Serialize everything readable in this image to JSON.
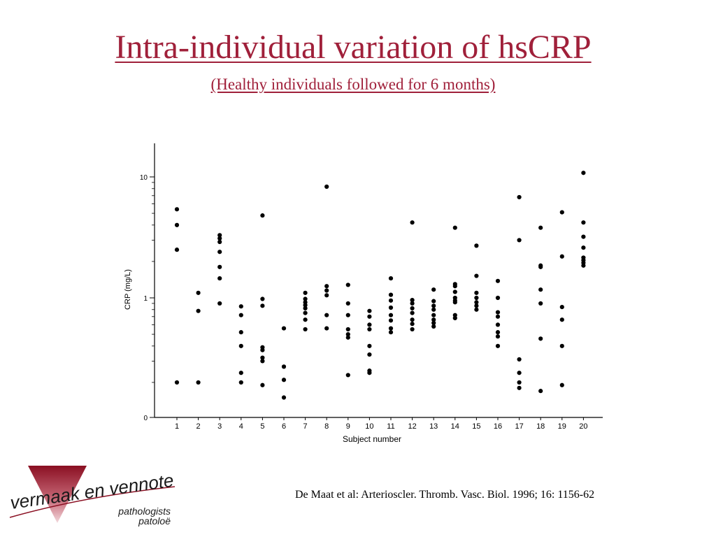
{
  "slide": {
    "title": "Intra-individual variation of hsCRP",
    "subtitle": "(Healthy individuals followed for 6 months)",
    "citation": "De Maat et al: Arterioscler. Thromb. Vasc. Biol. 1996; 16: 1156-62"
  },
  "logo": {
    "name": "vermaak en vennote",
    "line1": "pathologists",
    "line2": "patoloë"
  },
  "colors": {
    "title": "#a0203a",
    "points": "#000000",
    "logo_triangle": "#a8152d",
    "logo_text": "#1a1a1a"
  },
  "chart_data": {
    "type": "scatter",
    "title": "",
    "xlabel": "Subject number",
    "ylabel": "CRP (mg/L)",
    "y_scale": "log",
    "y_ticks": [
      "0",
      "1",
      "10"
    ],
    "grid": false,
    "categories": [
      "1",
      "2",
      "3",
      "4",
      "5",
      "6",
      "7",
      "8",
      "9",
      "10",
      "11",
      "12",
      "13",
      "14",
      "15",
      "16",
      "17",
      "18",
      "19",
      "20"
    ],
    "series": [
      {
        "x": "1",
        "values": [
          5.4,
          4.0,
          2.5,
          0.2
        ]
      },
      {
        "x": "2",
        "values": [
          1.1,
          0.78,
          0.2
        ]
      },
      {
        "x": "3",
        "values": [
          3.3,
          3.1,
          2.9,
          2.4,
          1.8,
          1.45,
          0.9
        ]
      },
      {
        "x": "4",
        "values": [
          0.85,
          0.72,
          0.52,
          0.4,
          0.24,
          0.2
        ]
      },
      {
        "x": "5",
        "values": [
          4.8,
          0.98,
          0.86,
          0.39,
          0.37,
          0.32,
          0.3,
          0.19
        ]
      },
      {
        "x": "6",
        "values": [
          0.56,
          0.27,
          0.21,
          0.15
        ]
      },
      {
        "x": "7",
        "values": [
          1.1,
          0.98,
          0.92,
          0.87,
          0.82,
          0.75,
          0.66,
          0.55
        ]
      },
      {
        "x": "8",
        "values": [
          8.3,
          1.25,
          1.15,
          1.05,
          0.72,
          0.56
        ]
      },
      {
        "x": "9",
        "values": [
          1.28,
          0.9,
          0.72,
          0.55,
          0.5,
          0.47,
          0.23
        ]
      },
      {
        "x": "10",
        "values": [
          0.78,
          0.7,
          0.6,
          0.55,
          0.4,
          0.34,
          0.25,
          0.24
        ]
      },
      {
        "x": "11",
        "values": [
          1.45,
          1.06,
          0.95,
          0.83,
          0.72,
          0.65,
          0.56,
          0.52
        ]
      },
      {
        "x": "12",
        "values": [
          4.2,
          0.96,
          0.9,
          0.82,
          0.75,
          0.66,
          0.61,
          0.55
        ]
      },
      {
        "x": "13",
        "values": [
          1.17,
          0.94,
          0.86,
          0.8,
          0.72,
          0.66,
          0.62,
          0.58
        ]
      },
      {
        "x": "14",
        "values": [
          3.8,
          1.3,
          1.25,
          1.12,
          1.0,
          0.95,
          0.92,
          0.72,
          0.68
        ]
      },
      {
        "x": "15",
        "values": [
          2.7,
          1.52,
          1.1,
          1.0,
          0.92,
          0.86,
          0.8
        ]
      },
      {
        "x": "16",
        "values": [
          1.38,
          1.0,
          0.76,
          0.7,
          0.6,
          0.52,
          0.48,
          0.4
        ]
      },
      {
        "x": "17",
        "values": [
          6.8,
          3.0,
          0.31,
          0.24,
          0.2,
          0.18
        ]
      },
      {
        "x": "18",
        "values": [
          3.8,
          1.85,
          1.8,
          1.17,
          0.9,
          0.46,
          0.17
        ]
      },
      {
        "x": "19",
        "values": [
          5.1,
          2.2,
          0.84,
          0.66,
          0.4,
          0.19
        ]
      },
      {
        "x": "20",
        "values": [
          10.8,
          4.2,
          3.2,
          2.6,
          2.15,
          2.05,
          1.95,
          1.85
        ]
      }
    ]
  }
}
